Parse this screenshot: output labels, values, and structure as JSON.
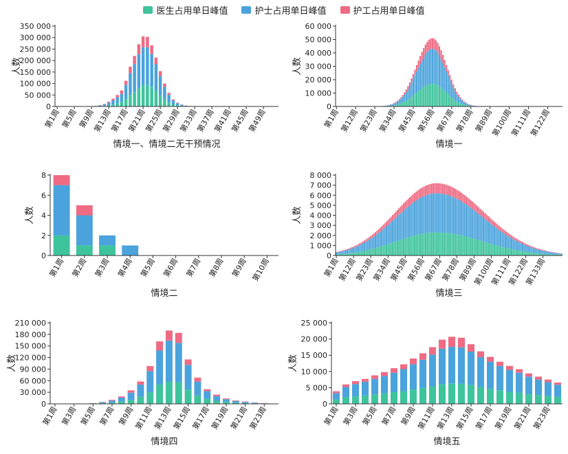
{
  "legend": [
    {
      "name": "医生占用单日峰值",
      "color": "#3ec49c"
    },
    {
      "name": "护士占用单日峰值",
      "color": "#4aa3dc"
    },
    {
      "name": "护工占用单日峰值",
      "color": "#ee6b83"
    }
  ],
  "chart_data": [
    {
      "type": "bar",
      "stacked": true,
      "title": "情境一、情境二无干预情况",
      "ylabel": "人数",
      "ylim": [
        0,
        350000
      ],
      "yticks": [
        0,
        50000,
        100000,
        150000,
        200000,
        250000,
        300000,
        350000
      ],
      "ytick_labels": [
        "0",
        "50 000",
        "100 000",
        "150 000",
        "200 000",
        "250 000",
        "300 000",
        "350 000"
      ],
      "x_count": 52,
      "xtick_labels": [
        "第1周",
        "第5周",
        "第9周",
        "第13周",
        "第17周",
        "第21周",
        "第25周",
        "第29周",
        "第33周",
        "第37周",
        "第41周",
        "第45周",
        "第49周"
      ],
      "xtick_positions": [
        1,
        5,
        9,
        13,
        17,
        21,
        25,
        29,
        33,
        37,
        41,
        45,
        49
      ],
      "series": [
        {
          "name": "医生占用单日峰值",
          "values": [
            0,
            0,
            0,
            0,
            0,
            0,
            0,
            0,
            300,
            700,
            1400,
            2500,
            4500,
            8000,
            14000,
            20000,
            32000,
            50000,
            62000,
            80000,
            93000,
            93000,
            86000,
            70000,
            46000,
            30000,
            17000,
            9000,
            5000,
            2500,
            1200,
            500,
            200,
            100,
            0,
            0,
            0,
            0,
            0,
            0,
            0,
            0,
            0,
            0,
            0,
            0,
            0,
            0,
            0,
            0,
            0,
            0
          ]
        },
        {
          "name": "护士占用单日峰值",
          "values": [
            0,
            0,
            0,
            0,
            0,
            0,
            0,
            0,
            800,
            1800,
            3600,
            6500,
            12000,
            19000,
            26000,
            35000,
            62000,
            95000,
            123000,
            148000,
            165000,
            165000,
            142000,
            114000,
            86000,
            55000,
            33000,
            17000,
            9000,
            4800,
            2300,
            1000,
            450,
            200,
            0,
            0,
            0,
            0,
            0,
            0,
            0,
            0,
            0,
            0,
            0,
            0,
            0,
            0,
            0,
            0,
            0,
            0
          ]
        },
        {
          "name": "护工占用单日峰值",
          "values": [
            0,
            0,
            0,
            0,
            0,
            0,
            0,
            0,
            200,
            500,
            1000,
            2000,
            4000,
            7000,
            10000,
            15000,
            18000,
            28000,
            35000,
            43000,
            47000,
            45000,
            38000,
            29000,
            22000,
            15000,
            9000,
            5000,
            2500,
            1200,
            600,
            300,
            150,
            50,
            0,
            0,
            0,
            0,
            0,
            0,
            0,
            0,
            0,
            0,
            0,
            0,
            0,
            0,
            0,
            0,
            0,
            0
          ]
        }
      ]
    },
    {
      "type": "bar",
      "stacked": true,
      "title": "情境一",
      "ylabel": "人数",
      "ylim": [
        0,
        60000
      ],
      "yticks": [
        0,
        10000,
        20000,
        30000,
        40000,
        50000,
        60000
      ],
      "ytick_labels": [
        "0",
        "10 000",
        "20 000",
        "30 000",
        "40 000",
        "50 000",
        "60 000"
      ],
      "x_count": 130,
      "xtick_labels": [
        "第1周",
        "第12周",
        "第23周",
        "第34周",
        "第45周",
        "第56周",
        "第67周",
        "第78周",
        "第89周",
        "第100周",
        "第111周",
        "第122周"
      ],
      "xtick_positions": [
        1,
        12,
        23,
        34,
        45,
        56,
        67,
        78,
        89,
        100,
        111,
        122
      ],
      "bell": {
        "center": 56,
        "sd_left": 9,
        "sd_right": 8,
        "peaks": [
          17000,
          26000,
          8000
        ]
      }
    },
    {
      "type": "bar",
      "stacked": true,
      "title": "情境二",
      "ylabel": "人数",
      "ylim": [
        0,
        8
      ],
      "yticks": [
        0,
        2,
        4,
        6,
        8
      ],
      "ytick_labels": [
        "0",
        "2",
        "4",
        "6",
        "8"
      ],
      "x_count": 10,
      "xtick_labels": [
        "第1周",
        "第2周",
        "第3周",
        "第4周",
        "第5周",
        "第6周",
        "第7周",
        "第8周",
        "第9周",
        "第10周"
      ],
      "xtick_positions": [
        1,
        2,
        3,
        4,
        5,
        6,
        7,
        8,
        9,
        10
      ],
      "series": [
        {
          "name": "医生占用单日峰值",
          "values": [
            2,
            1,
            1,
            0,
            0,
            0,
            0,
            0,
            0,
            0
          ]
        },
        {
          "name": "护士占用单日峰值",
          "values": [
            5,
            3,
            1,
            1,
            0,
            0,
            0,
            0,
            0,
            0
          ]
        },
        {
          "name": "护工占用单日峰值",
          "values": [
            1,
            1,
            0,
            0,
            0,
            0,
            0,
            0,
            0,
            0
          ]
        }
      ]
    },
    {
      "type": "bar",
      "stacked": true,
      "title": "情境三",
      "ylabel": "人数",
      "ylim": [
        0,
        8000
      ],
      "yticks": [
        0,
        1000,
        2000,
        3000,
        4000,
        5000,
        6000,
        7000,
        8000
      ],
      "ytick_labels": [
        "0",
        "1 000",
        "2 000",
        "3 000",
        "4 000",
        "5 000",
        "6 000",
        "7 000",
        "8 000"
      ],
      "x_count": 145,
      "xtick_labels": [
        "第1周",
        "第12周",
        "第23周",
        "第34周",
        "第45周",
        "第56周",
        "第67周",
        "第78周",
        "第89周",
        "第100周",
        "第111周",
        "第122周",
        "第133周"
      ],
      "xtick_positions": [
        1,
        12,
        23,
        34,
        45,
        56,
        67,
        78,
        89,
        100,
        111,
        122,
        133
      ],
      "bell": {
        "center": 65,
        "sd_left": 26,
        "sd_right": 30,
        "peaks": [
          2300,
          3900,
          1000
        ]
      }
    },
    {
      "type": "bar",
      "stacked": true,
      "title": "情境四",
      "ylabel": "人数",
      "ylim": [
        0,
        210000
      ],
      "yticks": [
        0,
        30000,
        60000,
        90000,
        120000,
        150000,
        180000,
        210000
      ],
      "ytick_labels": [
        "0",
        "30 000",
        "60 000",
        "90 000",
        "120 000",
        "150 000",
        "180 000",
        "210 000"
      ],
      "x_count": 24,
      "xtick_labels": [
        "第1周",
        "第3周",
        "第5周",
        "第7周",
        "第9周",
        "第11周",
        "第13周",
        "第15周",
        "第17周",
        "第19周",
        "第21周",
        "第23周"
      ],
      "xtick_positions": [
        1,
        3,
        5,
        7,
        9,
        11,
        13,
        15,
        17,
        19,
        21,
        23
      ],
      "series": [
        {
          "name": "医生占用单日峰值",
          "values": [
            0,
            0,
            0,
            0,
            500,
            1500,
            3000,
            6000,
            10000,
            18000,
            30000,
            50000,
            57000,
            56000,
            37000,
            22000,
            13000,
            8000,
            5000,
            3000,
            2000,
            1000,
            500,
            0
          ]
        },
        {
          "name": "护士占用单日峰值",
          "values": [
            0,
            0,
            0,
            100,
            1000,
            2500,
            5500,
            10000,
            19000,
            32000,
            55000,
            88000,
            107000,
            102000,
            64000,
            36000,
            20000,
            12000,
            7000,
            4500,
            3000,
            2000,
            1000,
            0
          ]
        },
        {
          "name": "护工占用单日峰值",
          "values": [
            0,
            0,
            0,
            100,
            500,
            1000,
            2000,
            3000,
            6000,
            8000,
            13000,
            24000,
            26000,
            26000,
            14000,
            10000,
            5000,
            4000,
            2000,
            1500,
            1000,
            500,
            500,
            0
          ]
        }
      ]
    },
    {
      "type": "bar",
      "stacked": true,
      "title": "情境五",
      "ylabel": "人数",
      "ylim": [
        0,
        25000
      ],
      "yticks": [
        0,
        5000,
        10000,
        15000,
        20000,
        25000
      ],
      "ytick_labels": [
        "0",
        "5 000",
        "10 000",
        "15 000",
        "20 000",
        "25 000"
      ],
      "x_count": 24,
      "xtick_labels": [
        "第1周",
        "第3周",
        "第5周",
        "第7周",
        "第9周",
        "第11周",
        "第13周",
        "第15周",
        "第17周",
        "第19周",
        "第21周",
        "第23周"
      ],
      "xtick_positions": [
        1,
        3,
        5,
        7,
        9,
        11,
        13,
        15,
        17,
        19,
        21,
        23
      ],
      "series": [
        {
          "name": "医生占用单日峰值",
          "values": [
            1300,
            2000,
            2300,
            2600,
            2900,
            3200,
            3600,
            3900,
            4400,
            4900,
            5400,
            6000,
            6300,
            6200,
            5800,
            5200,
            4700,
            4200,
            3700,
            3400,
            3000,
            2700,
            2400,
            2100
          ]
        },
        {
          "name": "护士占用单日峰值",
          "values": [
            2000,
            3200,
            3800,
            4200,
            4800,
            5400,
            6000,
            6800,
            7800,
            8700,
            9800,
            11000,
            11300,
            11200,
            10300,
            9200,
            8300,
            7500,
            6800,
            6200,
            5400,
            4800,
            4300,
            3800
          ]
        },
        {
          "name": "护工占用单日峰值",
          "values": [
            600,
            800,
            900,
            900,
            1100,
            1200,
            1400,
            1500,
            1800,
            2000,
            2300,
            2800,
            3100,
            3000,
            2300,
            1800,
            1500,
            1300,
            1200,
            1100,
            1000,
            900,
            800,
            700
          ]
        }
      ]
    }
  ]
}
